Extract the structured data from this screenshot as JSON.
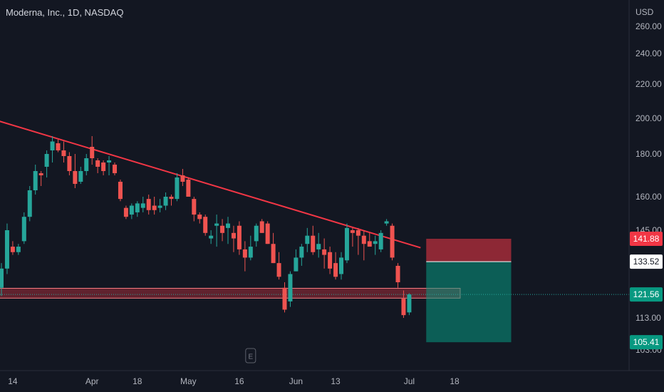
{
  "header": {
    "title": "Moderna, Inc., 1D, NASDAQ"
  },
  "colors": {
    "background": "#131722",
    "up": "#26a69a",
    "down": "#ef5350",
    "trend": "#f23645",
    "text": "#b2b5be"
  },
  "chart_data": {
    "type": "candlestick",
    "currency": "USD",
    "y_ticks": [
      103,
      113,
      145,
      160,
      180,
      200,
      220,
      240,
      260
    ],
    "y_tick_labels": [
      "103.00",
      "113.00",
      "145.00",
      "160.00",
      "180.00",
      "200.00",
      "220.00",
      "240.00",
      "260.00"
    ],
    "x_ticks": [
      {
        "label": "14",
        "i": 2
      },
      {
        "label": "Apr",
        "i": 16
      },
      {
        "label": "18",
        "i": 24
      },
      {
        "label": "May",
        "i": 33
      },
      {
        "label": "16",
        "i": 42
      },
      {
        "label": "Jun",
        "i": 52
      },
      {
        "label": "13",
        "i": 59
      },
      {
        "label": "Jul",
        "i": 72
      },
      {
        "label": "18",
        "i": 80
      }
    ],
    "candles": [
      {
        "o": 124,
        "h": 133,
        "l": 121,
        "c": 131
      },
      {
        "o": 131,
        "h": 148,
        "l": 129,
        "c": 145
      },
      {
        "o": 139,
        "h": 141,
        "l": 136,
        "c": 137
      },
      {
        "o": 137,
        "h": 140,
        "l": 136,
        "c": 139
      },
      {
        "o": 141,
        "h": 153,
        "l": 140,
        "c": 151
      },
      {
        "o": 151,
        "h": 165,
        "l": 149,
        "c": 163
      },
      {
        "o": 163,
        "h": 175,
        "l": 161,
        "c": 172
      },
      {
        "o": 171,
        "h": 172,
        "l": 165,
        "c": 170
      },
      {
        "o": 174,
        "h": 182,
        "l": 169,
        "c": 180
      },
      {
        "o": 182,
        "h": 190,
        "l": 176,
        "c": 187
      },
      {
        "o": 186,
        "h": 188,
        "l": 181,
        "c": 182
      },
      {
        "o": 182,
        "h": 187,
        "l": 176,
        "c": 179
      },
      {
        "o": 179,
        "h": 181,
        "l": 170,
        "c": 172
      },
      {
        "o": 172,
        "h": 180,
        "l": 164,
        "c": 166
      },
      {
        "o": 167,
        "h": 174,
        "l": 166,
        "c": 172
      },
      {
        "o": 172,
        "h": 180,
        "l": 170,
        "c": 178
      },
      {
        "o": 184,
        "h": 190,
        "l": 175,
        "c": 178
      },
      {
        "o": 177,
        "h": 178,
        "l": 171,
        "c": 174
      },
      {
        "o": 176,
        "h": 177,
        "l": 170,
        "c": 172
      },
      {
        "o": 176,
        "h": 179,
        "l": 170,
        "c": 177
      },
      {
        "o": 175,
        "h": 176,
        "l": 170,
        "c": 171
      },
      {
        "o": 167,
        "h": 168,
        "l": 158,
        "c": 159
      },
      {
        "o": 155,
        "h": 156,
        "l": 150,
        "c": 151
      },
      {
        "o": 152,
        "h": 157,
        "l": 150,
        "c": 156
      },
      {
        "o": 153,
        "h": 158,
        "l": 151,
        "c": 157
      },
      {
        "o": 155,
        "h": 160,
        "l": 153,
        "c": 157
      },
      {
        "o": 159,
        "h": 161,
        "l": 152,
        "c": 154
      },
      {
        "o": 156,
        "h": 160,
        "l": 152,
        "c": 154
      },
      {
        "o": 155,
        "h": 159,
        "l": 153,
        "c": 156
      },
      {
        "o": 156,
        "h": 162,
        "l": 154,
        "c": 160
      },
      {
        "o": 160,
        "h": 161,
        "l": 156,
        "c": 159
      },
      {
        "o": 159,
        "h": 171,
        "l": 158,
        "c": 169
      },
      {
        "o": 170,
        "h": 173,
        "l": 165,
        "c": 167
      },
      {
        "o": 168,
        "h": 169,
        "l": 160,
        "c": 160
      },
      {
        "o": 159,
        "h": 160,
        "l": 149,
        "c": 152
      },
      {
        "o": 152,
        "h": 153,
        "l": 148,
        "c": 150
      },
      {
        "o": 151,
        "h": 152,
        "l": 143,
        "c": 144
      },
      {
        "o": 142,
        "h": 145,
        "l": 140,
        "c": 143
      },
      {
        "o": 147,
        "h": 152,
        "l": 139,
        "c": 148
      },
      {
        "o": 147,
        "h": 150,
        "l": 141,
        "c": 144
      },
      {
        "o": 146,
        "h": 151,
        "l": 140,
        "c": 148
      },
      {
        "o": 144,
        "h": 147,
        "l": 137,
        "c": 142
      },
      {
        "o": 147,
        "h": 149,
        "l": 136,
        "c": 138
      },
      {
        "o": 138,
        "h": 141,
        "l": 130,
        "c": 135
      },
      {
        "o": 135,
        "h": 143,
        "l": 134,
        "c": 139
      },
      {
        "o": 141,
        "h": 148,
        "l": 139,
        "c": 147
      },
      {
        "o": 149,
        "h": 150,
        "l": 144,
        "c": 144
      },
      {
        "o": 148,
        "h": 149,
        "l": 140,
        "c": 140
      },
      {
        "o": 140,
        "h": 144,
        "l": 133,
        "c": 133
      },
      {
        "o": 133,
        "h": 137,
        "l": 127,
        "c": 128
      },
      {
        "o": 124,
        "h": 126,
        "l": 115,
        "c": 116
      },
      {
        "o": 119,
        "h": 130,
        "l": 117,
        "c": 129
      },
      {
        "o": 130,
        "h": 138,
        "l": 130,
        "c": 135
      },
      {
        "o": 135,
        "h": 140,
        "l": 132,
        "c": 139
      },
      {
        "o": 140,
        "h": 146,
        "l": 137,
        "c": 143
      },
      {
        "o": 143,
        "h": 147,
        "l": 136,
        "c": 137
      },
      {
        "o": 138,
        "h": 144,
        "l": 135,
        "c": 140
      },
      {
        "o": 138,
        "h": 142,
        "l": 131,
        "c": 136
      },
      {
        "o": 137,
        "h": 139,
        "l": 129,
        "c": 131
      },
      {
        "o": 133,
        "h": 137,
        "l": 127,
        "c": 128
      },
      {
        "o": 129,
        "h": 137,
        "l": 127,
        "c": 135
      },
      {
        "o": 134,
        "h": 148,
        "l": 133,
        "c": 146
      },
      {
        "o": 145,
        "h": 146,
        "l": 139,
        "c": 144
      },
      {
        "o": 145,
        "h": 146,
        "l": 136,
        "c": 143
      },
      {
        "o": 143,
        "h": 145,
        "l": 134,
        "c": 140
      },
      {
        "o": 141,
        "h": 144,
        "l": 139,
        "c": 139
      },
      {
        "o": 140,
        "h": 143,
        "l": 136,
        "c": 141
      },
      {
        "o": 138,
        "h": 145,
        "l": 137,
        "c": 144
      },
      {
        "o": 148,
        "h": 150,
        "l": 147,
        "c": 149
      },
      {
        "o": 147,
        "h": 148,
        "l": 134,
        "c": 135
      },
      {
        "o": 132,
        "h": 133,
        "l": 124,
        "c": 126
      },
      {
        "o": 120,
        "h": 123,
        "l": 113,
        "c": 114
      },
      {
        "o": 115,
        "h": 122,
        "l": 114,
        "c": 121.56
      }
    ],
    "trendline": [
      {
        "i": -1,
        "v": 199
      },
      {
        "i": 74,
        "v": 138.6
      }
    ],
    "support_zone": {
      "from_i": -1,
      "to_i": 81,
      "low": 120.2,
      "high": 123.8
    },
    "position": {
      "from_i": 75,
      "to_i": 90,
      "stop": 141.88,
      "entry": 133.52,
      "target": 105.41
    },
    "price_tags": [
      {
        "value": 141.88,
        "label": "141.88",
        "style": "down"
      },
      {
        "value": 133.52,
        "label": "133.52",
        "style": "light"
      },
      {
        "value": 121.56,
        "label": "121.56",
        "style": "up"
      },
      {
        "value": 105.41,
        "label": "105.41",
        "style": "up"
      }
    ],
    "last_price": 121.56,
    "earnings_marker": {
      "i": 44,
      "label": "E"
    }
  }
}
